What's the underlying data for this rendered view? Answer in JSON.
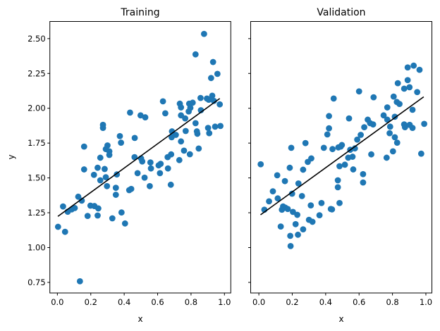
{
  "chart_data": [
    {
      "type": "scatter",
      "title": "Training",
      "xlabel": "x",
      "ylabel": "y",
      "xlim": [
        -0.045,
        1.038
      ],
      "ylim": [
        0.674,
        2.623
      ],
      "xticks": [
        0.0,
        0.2,
        0.4,
        0.6,
        0.8,
        1.0
      ],
      "xtick_labels": [
        "0.0",
        "0.2",
        "0.4",
        "0.6",
        "0.8",
        "1.0"
      ],
      "yticks": [
        0.75,
        1.0,
        1.25,
        1.5,
        1.75,
        2.0,
        2.25,
        2.5
      ],
      "ytick_labels": [
        "0.75",
        "1.00",
        "1.25",
        "1.50",
        "1.75",
        "2.00",
        "2.25",
        "2.50"
      ],
      "show_ytick_labels": true,
      "grid": false,
      "point_color": "#1f77b4",
      "line_color": "#000000",
      "fit_line": {
        "x": [
          0.003,
          0.972
        ],
        "y": [
          1.224,
          2.07
        ]
      },
      "points": [
        [
          0.878,
          2.534
        ],
        [
          0.827,
          2.387
        ],
        [
          0.932,
          2.332
        ],
        [
          0.958,
          2.247
        ],
        [
          0.92,
          2.217
        ],
        [
          0.857,
          2.074
        ],
        [
          0.895,
          2.07
        ],
        [
          0.927,
          2.09
        ],
        [
          0.972,
          2.028
        ],
        [
          0.906,
          2.061
        ],
        [
          0.937,
          2.053
        ],
        [
          0.859,
          1.986
        ],
        [
          0.733,
          2.033
        ],
        [
          0.789,
          2.033
        ],
        [
          0.81,
          2.04
        ],
        [
          0.74,
          2.006
        ],
        [
          0.796,
          2.003
        ],
        [
          0.786,
          1.977
        ],
        [
          0.632,
          2.05
        ],
        [
          0.646,
          1.964
        ],
        [
          0.498,
          1.949
        ],
        [
          0.526,
          1.935
        ],
        [
          0.435,
          1.969
        ],
        [
          0.74,
          1.949
        ],
        [
          0.765,
          1.927
        ],
        [
          0.827,
          1.893
        ],
        [
          0.902,
          1.859
        ],
        [
          0.909,
          1.821
        ],
        [
          0.944,
          1.868
        ],
        [
          0.976,
          1.873
        ],
        [
          0.273,
          1.881
        ],
        [
          0.273,
          1.859
        ],
        [
          0.374,
          1.8
        ],
        [
          0.381,
          1.753
        ],
        [
          0.463,
          1.787
        ],
        [
          0.16,
          1.725
        ],
        [
          0.3,
          1.733
        ],
        [
          0.29,
          1.707
        ],
        [
          0.311,
          1.691
        ],
        [
          0.311,
          1.665
        ],
        [
          0.257,
          1.645
        ],
        [
          0.686,
          1.834
        ],
        [
          0.684,
          1.792
        ],
        [
          0.709,
          1.809
        ],
        [
          0.768,
          1.837
        ],
        [
          0.835,
          1.834
        ],
        [
          0.838,
          1.817
        ],
        [
          0.74,
          1.762
        ],
        [
          0.758,
          1.696
        ],
        [
          0.793,
          1.67
        ],
        [
          0.846,
          1.711
        ],
        [
          0.681,
          1.669
        ],
        [
          0.66,
          1.649
        ],
        [
          0.73,
          1.628
        ],
        [
          0.501,
          1.64
        ],
        [
          0.508,
          1.618
        ],
        [
          0.557,
          1.611
        ],
        [
          0.56,
          1.568
        ],
        [
          0.606,
          1.59
        ],
        [
          0.618,
          1.601
        ],
        [
          0.614,
          1.534
        ],
        [
          0.662,
          1.568
        ],
        [
          0.48,
          1.534
        ],
        [
          0.522,
          1.502
        ],
        [
          0.553,
          1.441
        ],
        [
          0.679,
          1.451
        ],
        [
          0.462,
          1.649
        ],
        [
          0.16,
          1.561
        ],
        [
          0.241,
          1.573
        ],
        [
          0.283,
          1.564
        ],
        [
          0.219,
          1.522
        ],
        [
          0.29,
          1.505
        ],
        [
          0.356,
          1.525
        ],
        [
          0.257,
          1.483
        ],
        [
          0.297,
          1.441
        ],
        [
          0.35,
          1.429
        ],
        [
          0.35,
          1.379
        ],
        [
          0.43,
          1.412
        ],
        [
          0.442,
          1.421
        ],
        [
          0.125,
          1.365
        ],
        [
          0.146,
          1.337
        ],
        [
          0.034,
          1.295
        ],
        [
          0.062,
          1.257
        ],
        [
          0.086,
          1.274
        ],
        [
          0.104,
          1.284
        ],
        [
          0.198,
          1.301
        ],
        [
          0.222,
          1.298
        ],
        [
          0.245,
          1.281
        ],
        [
          0.241,
          1.23
        ],
        [
          0.181,
          1.227
        ],
        [
          0.384,
          1.252
        ],
        [
          0.329,
          1.21
        ],
        [
          0.405,
          1.173
        ],
        [
          0.004,
          1.149
        ],
        [
          0.046,
          1.113
        ],
        [
          0.135,
          0.758
        ]
      ]
    },
    {
      "type": "scatter",
      "title": "Validation",
      "xlabel": "x",
      "ylabel": "",
      "xlim": [
        -0.049,
        1.036
      ],
      "ylim": [
        0.674,
        2.623
      ],
      "xticks": [
        0.0,
        0.2,
        0.4,
        0.6,
        0.8,
        1.0
      ],
      "xtick_labels": [
        "0.0",
        "0.2",
        "0.4",
        "0.6",
        "0.8",
        "1.0"
      ],
      "yticks": [
        0.75,
        1.0,
        1.25,
        1.5,
        1.75,
        2.0,
        2.25,
        2.5
      ],
      "ytick_labels": [],
      "show_ytick_labels": false,
      "sharey": true,
      "grid": false,
      "point_color": "#1f77b4",
      "line_color": "#000000",
      "fit_line": {
        "x": [
          0.01,
          0.987
        ],
        "y": [
          1.235,
          2.082
        ]
      },
      "points": [
        [
          0.891,
          2.293
        ],
        [
          0.927,
          2.306
        ],
        [
          0.962,
          2.276
        ],
        [
          0.891,
          2.202
        ],
        [
          0.832,
          2.18
        ],
        [
          0.87,
          2.141
        ],
        [
          0.902,
          2.151
        ],
        [
          0.948,
          2.116
        ],
        [
          0.6,
          2.121
        ],
        [
          0.687,
          2.079
        ],
        [
          0.448,
          2.07
        ],
        [
          0.807,
          2.084
        ],
        [
          0.826,
          2.045
        ],
        [
          0.842,
          2.031
        ],
        [
          0.769,
          2.006
        ],
        [
          0.92,
          1.989
        ],
        [
          0.54,
          1.927
        ],
        [
          0.652,
          1.918
        ],
        [
          0.666,
          1.893
        ],
        [
          0.684,
          1.884
        ],
        [
          0.747,
          1.949
        ],
        [
          0.814,
          1.939
        ],
        [
          0.769,
          1.918
        ],
        [
          0.631,
          1.864
        ],
        [
          0.786,
          1.868
        ],
        [
          0.87,
          1.884
        ],
        [
          0.875,
          1.864
        ],
        [
          0.903,
          1.881
        ],
        [
          0.92,
          1.859
        ],
        [
          0.99,
          1.888
        ],
        [
          0.61,
          1.809
        ],
        [
          0.589,
          1.775
        ],
        [
          0.783,
          1.821
        ],
        [
          0.814,
          1.792
        ],
        [
          0.828,
          1.753
        ],
        [
          0.497,
          1.736
        ],
        [
          0.476,
          1.719
        ],
        [
          0.441,
          1.707
        ],
        [
          0.547,
          1.702
        ],
        [
          0.575,
          1.712
        ],
        [
          0.673,
          1.669
        ],
        [
          0.803,
          1.691
        ],
        [
          0.972,
          1.674
        ],
        [
          0.535,
          1.645
        ],
        [
          0.561,
          1.652
        ],
        [
          0.765,
          1.645
        ],
        [
          0.483,
          1.584
        ],
        [
          0.515,
          1.595
        ],
        [
          0.565,
          1.561
        ],
        [
          0.624,
          1.527
        ],
        [
          0.624,
          1.467
        ],
        [
          0.473,
          1.483
        ],
        [
          0.473,
          1.433
        ],
        [
          0.483,
          1.32
        ],
        [
          0.438,
          1.274
        ],
        [
          0.42,
          1.944
        ],
        [
          0.42,
          1.856
        ],
        [
          0.41,
          1.812
        ],
        [
          0.279,
          1.75
        ],
        [
          0.194,
          1.716
        ],
        [
          0.389,
          1.716
        ],
        [
          0.49,
          1.725
        ],
        [
          0.314,
          1.64
        ],
        [
          0.293,
          1.615
        ],
        [
          0.011,
          1.598
        ],
        [
          0.185,
          1.573
        ],
        [
          0.265,
          1.559
        ],
        [
          0.11,
          1.519
        ],
        [
          0.156,
          1.477
        ],
        [
          0.237,
          1.46
        ],
        [
          0.084,
          1.404
        ],
        [
          0.113,
          1.353
        ],
        [
          0.061,
          1.332
        ],
        [
          0.033,
          1.272
        ],
        [
          0.199,
          1.387
        ],
        [
          0.258,
          1.37
        ],
        [
          0.145,
          1.295
        ],
        [
          0.159,
          1.286
        ],
        [
          0.138,
          1.272
        ],
        [
          0.173,
          1.277
        ],
        [
          0.204,
          1.256
        ],
        [
          0.23,
          1.235
        ],
        [
          0.311,
          1.303
        ],
        [
          0.375,
          1.32
        ],
        [
          0.431,
          1.277
        ],
        [
          0.363,
          1.232
        ],
        [
          0.3,
          1.199
        ],
        [
          0.321,
          1.185
        ],
        [
          0.22,
          1.168
        ],
        [
          0.131,
          1.151
        ],
        [
          0.265,
          1.131
        ],
        [
          0.234,
          1.092
        ],
        [
          0.188,
          1.084
        ],
        [
          0.19,
          1.011
        ]
      ]
    }
  ]
}
